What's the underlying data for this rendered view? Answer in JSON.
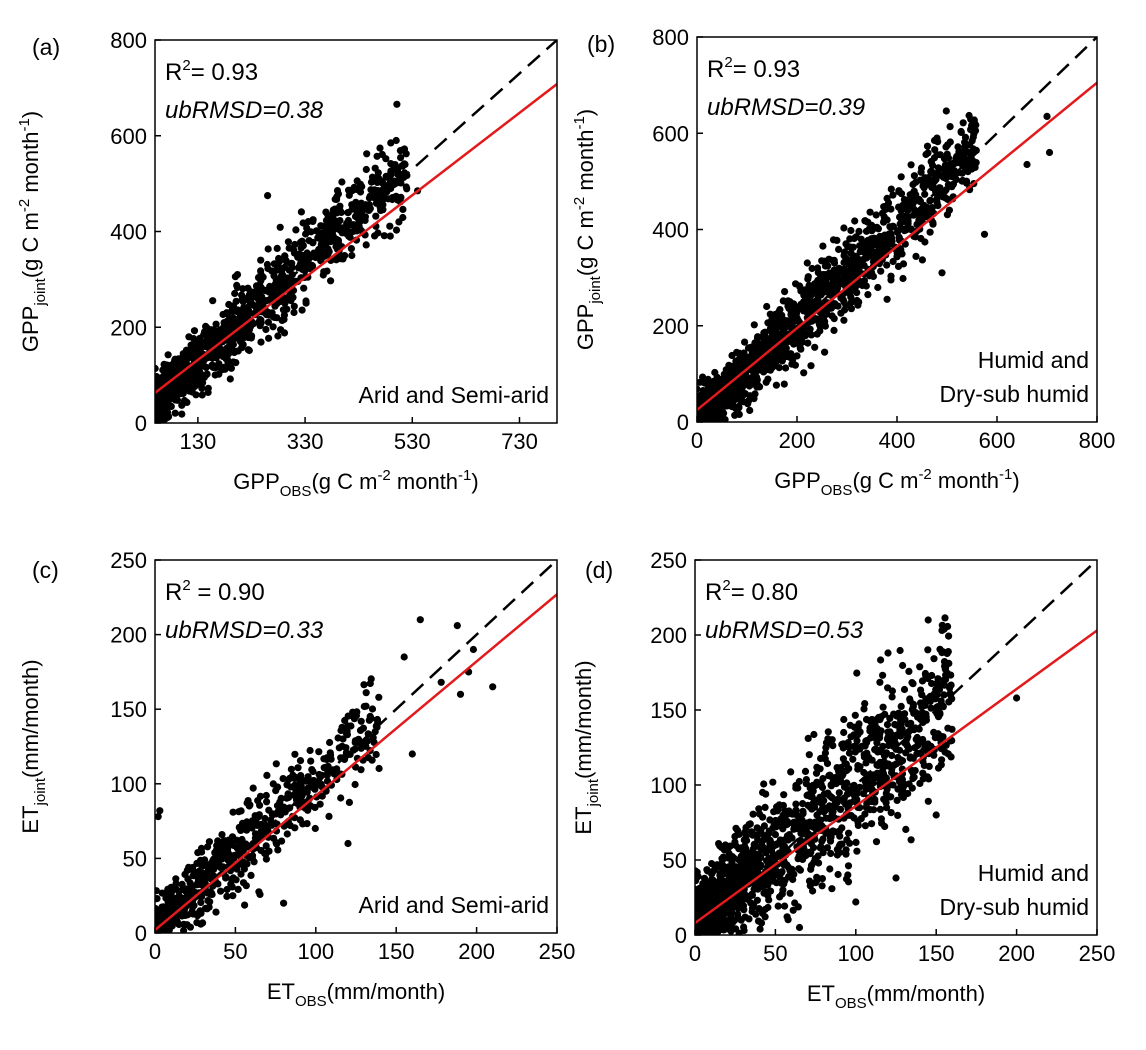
{
  "colors": {
    "point": "#000000",
    "fit_line": "#e31a1c",
    "one_to_one": "#000000",
    "axis": "#000000",
    "background": "#ffffff"
  },
  "chart_data": [
    {
      "type": "scatter",
      "panel_label": "(a)",
      "stats": {
        "r2_label": "R",
        "r2_sup": "2",
        "r2_value": "= 0.93",
        "ubrmsd": "ubRMSD=0.38"
      },
      "region_lines": [
        "Arid and Semi-arid"
      ],
      "x_label": {
        "main": "GPP",
        "sub": "OBS",
        "unit_pre": "(g C m",
        "unit_sup1": "-2",
        "unit_mid": " month",
        "unit_sup2": "-1",
        "unit_post": ")"
      },
      "y_label": {
        "main": "GPP",
        "sub": "joint",
        "unit_pre": "(g C m",
        "unit_sup1": "-2",
        "unit_mid": " month",
        "unit_sup2": "-1",
        "unit_post": ")"
      },
      "xlim": [
        50,
        800
      ],
      "ylim": [
        0,
        800
      ],
      "xticks": [
        130,
        330,
        530,
        730
      ],
      "yticks": [
        0,
        200,
        400,
        600,
        800
      ],
      "fit_line": {
        "intercept": 20,
        "slope": 0.86
      },
      "one_to_one": true,
      "point_cloud": {
        "count": 1100,
        "x_min": 50,
        "x_max": 520,
        "mean_x": 170,
        "noise_sd": 40,
        "slope": 1.05,
        "intercept": -10,
        "seed": 11
      },
      "outliers": [
        [
          500,
          590
        ],
        [
          490,
          585
        ],
        [
          540,
          485
        ],
        [
          505,
          420
        ],
        [
          450,
          470
        ],
        [
          395,
          445
        ],
        [
          260,
          475
        ]
      ]
    },
    {
      "type": "scatter",
      "panel_label": "(b)",
      "stats": {
        "r2_label": "R",
        "r2_sup": "2",
        "r2_value": "= 0.93",
        "ubrmsd": "ubRMSD=0.39"
      },
      "region_lines": [
        "Humid and",
        "Dry-sub humid"
      ],
      "x_label": {
        "main": "GPP",
        "sub": "OBS",
        "unit_pre": "(g C m",
        "unit_sup1": "-2",
        "unit_mid": " month",
        "unit_sup2": "-1",
        "unit_post": ")"
      },
      "y_label": {
        "main": "GPP",
        "sub": "joint",
        "unit_pre": "(g C m",
        "unit_sup1": "-2",
        "unit_mid": " month",
        "unit_sup2": "-1",
        "unit_post": ")"
      },
      "xlim": [
        0,
        800
      ],
      "ylim": [
        0,
        800
      ],
      "xticks": [
        0,
        200,
        400,
        600,
        800
      ],
      "yticks": [
        0,
        200,
        400,
        600,
        800
      ],
      "fit_line": {
        "intercept": 25,
        "slope": 0.85
      },
      "one_to_one": true,
      "point_cloud": {
        "count": 1500,
        "x_min": 0,
        "x_max": 560,
        "mean_x": 190,
        "noise_sd": 45,
        "slope": 1.0,
        "intercept": 5,
        "seed": 23
      },
      "outliers": [
        [
          480,
          590
        ],
        [
          475,
          585
        ],
        [
          700,
          635
        ],
        [
          705,
          560
        ],
        [
          660,
          535
        ],
        [
          575,
          390
        ],
        [
          490,
          310
        ],
        [
          545,
          485
        ]
      ]
    },
    {
      "type": "scatter",
      "panel_label": "(c)",
      "stats": {
        "r2_label": "R",
        "r2_sup": "2",
        "r2_value": " = 0.90",
        "ubrmsd": "ubRMSD=0.33"
      },
      "region_lines": [
        "Arid and Semi-arid"
      ],
      "x_label": {
        "main": "ET",
        "sub": "OBS",
        "unit_pre": "(mm/month)"
      },
      "y_label": {
        "main": "ET",
        "sub": "joint",
        "unit_pre": "(mm/month)"
      },
      "xlim": [
        0,
        250
      ],
      "ylim": [
        0,
        250
      ],
      "xticks": [
        0,
        50,
        100,
        150,
        200,
        250
      ],
      "yticks": [
        0,
        50,
        100,
        150,
        200,
        250
      ],
      "fit_line": {
        "intercept": 2,
        "slope": 0.9
      },
      "one_to_one": true,
      "point_cloud": {
        "count": 700,
        "x_min": 0,
        "x_max": 140,
        "mean_x": 35,
        "noise_sd": 14,
        "slope": 1.0,
        "intercept": 4,
        "seed": 37
      },
      "outliers": [
        [
          165,
          210
        ],
        [
          188,
          206
        ],
        [
          155,
          185
        ],
        [
          198,
          190
        ],
        [
          210,
          165
        ],
        [
          195,
          175
        ],
        [
          178,
          168
        ],
        [
          190,
          160
        ],
        [
          160,
          120
        ],
        [
          120,
          60
        ],
        [
          80,
          20
        ],
        [
          3,
          82
        ],
        [
          2,
          78
        ]
      ]
    },
    {
      "type": "scatter",
      "panel_label": "(d)",
      "stats": {
        "r2_label": "R",
        "r2_sup": "2",
        "r2_value": "= 0.80",
        "ubrmsd": "ubRMSD=0.53"
      },
      "region_lines": [
        "Humid and",
        "Dry-sub humid"
      ],
      "x_label": {
        "main": "ET",
        "sub": "OBS",
        "unit_pre": "(mm/month)"
      },
      "y_label": {
        "main": "ET",
        "sub": "joint",
        "unit_pre": "(mm/month)"
      },
      "xlim": [
        0,
        250
      ],
      "ylim": [
        0,
        250
      ],
      "xticks": [
        0,
        50,
        100,
        150,
        200,
        250
      ],
      "yticks": [
        0,
        50,
        100,
        150,
        200,
        250
      ],
      "fit_line": {
        "intercept": 8,
        "slope": 0.78
      },
      "one_to_one": true,
      "point_cloud": {
        "count": 1600,
        "x_min": 0,
        "x_max": 160,
        "mean_x": 55,
        "noise_sd": 24,
        "slope": 0.95,
        "intercept": 8,
        "seed": 53
      },
      "outliers": [
        [
          145,
          210
        ],
        [
          120,
          188
        ],
        [
          200,
          158
        ],
        [
          155,
          170
        ],
        [
          125,
          38
        ],
        [
          95,
          40
        ],
        [
          100,
          22
        ],
        [
          90,
          55
        ],
        [
          150,
          80
        ],
        [
          65,
          5
        ]
      ]
    }
  ]
}
